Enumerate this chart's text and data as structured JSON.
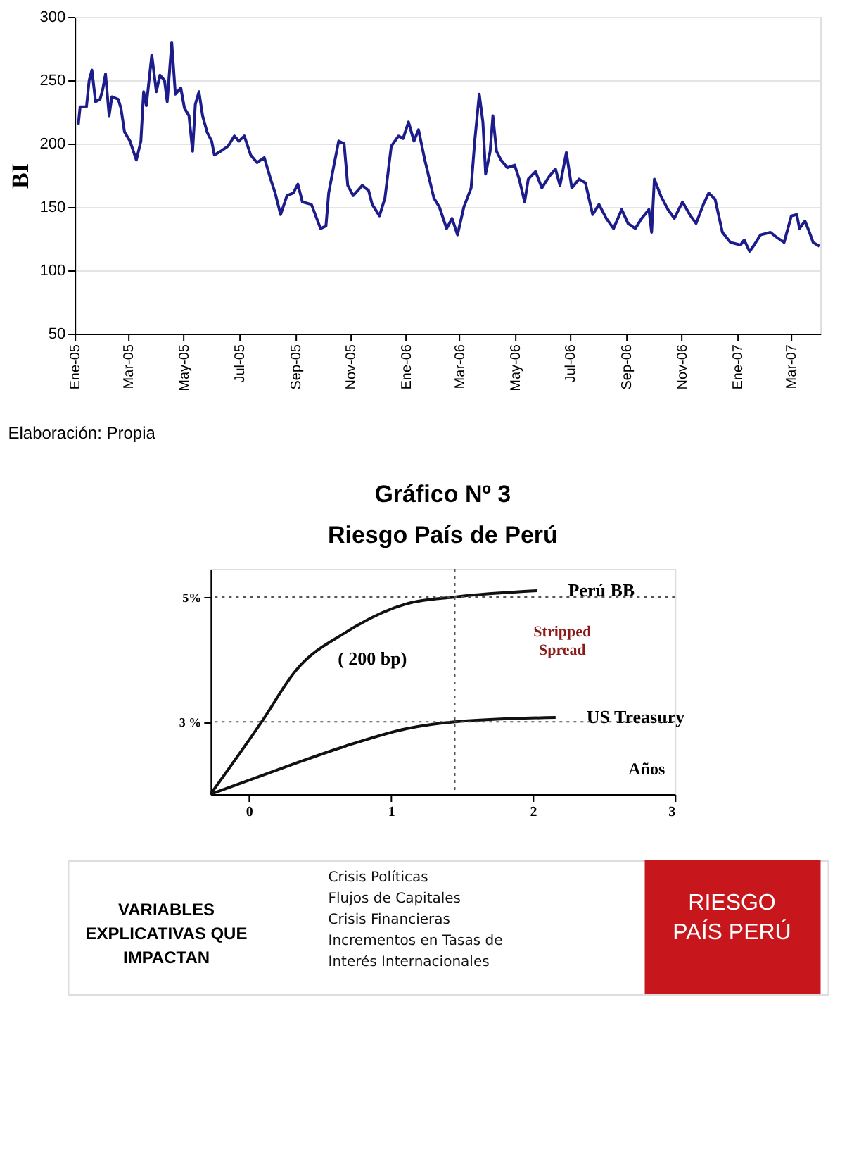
{
  "chart_data": [
    {
      "type": "line",
      "ylabel": "BI",
      "color": "#1c1c8a",
      "grid": "y",
      "xlim": [
        "2005-01-01",
        "2007-04-03"
      ],
      "ylim": [
        50,
        300
      ],
      "yticks": [
        50,
        100,
        150,
        200,
        250,
        300
      ],
      "xticks": [
        {
          "value": "2005-01-01",
          "label": "Ene-05"
        },
        {
          "value": "2005-03-01",
          "label": "Mar-05"
        },
        {
          "value": "2005-05-01",
          "label": "May-05"
        },
        {
          "value": "2005-07-01",
          "label": "Jul-05"
        },
        {
          "value": "2005-09-01",
          "label": "Sep-05"
        },
        {
          "value": "2005-11-01",
          "label": "Nov-05"
        },
        {
          "value": "2006-01-01",
          "label": "Ene-06"
        },
        {
          "value": "2006-03-01",
          "label": "Mar-06"
        },
        {
          "value": "2006-05-01",
          "label": "May-06"
        },
        {
          "value": "2006-07-01",
          "label": "Jul-06"
        },
        {
          "value": "2006-09-01",
          "label": "Sep-06"
        },
        {
          "value": "2006-11-01",
          "label": "Nov-06"
        },
        {
          "value": "2007-01-01",
          "label": "Ene-07"
        },
        {
          "value": "2007-03-01",
          "label": "Mar-07"
        }
      ],
      "x": [
        "2005-01-05",
        "2005-01-07",
        "2005-01-14",
        "2005-01-17",
        "2005-01-20",
        "2005-01-24",
        "2005-01-29",
        "2005-02-01",
        "2005-02-04",
        "2005-02-08",
        "2005-02-11",
        "2005-02-18",
        "2005-02-21",
        "2005-02-25",
        "2005-03-03",
        "2005-03-10",
        "2005-03-15",
        "2005-03-18",
        "2005-03-21",
        "2005-03-27",
        "2005-04-01",
        "2005-04-05",
        "2005-04-10",
        "2005-04-13",
        "2005-04-18",
        "2005-04-22",
        "2005-04-28",
        "2005-05-02",
        "2005-05-07",
        "2005-05-11",
        "2005-05-14",
        "2005-05-18",
        "2005-05-22",
        "2005-05-27",
        "2005-06-01",
        "2005-06-04",
        "2005-06-11",
        "2005-06-19",
        "2005-06-26",
        "2005-07-01",
        "2005-07-07",
        "2005-07-14",
        "2005-07-21",
        "2005-07-29",
        "2005-08-05",
        "2005-08-10",
        "2005-08-16",
        "2005-08-23",
        "2005-08-30",
        "2005-09-04",
        "2005-09-09",
        "2005-09-19",
        "2005-09-29",
        "2005-10-05",
        "2005-10-08",
        "2005-10-13",
        "2005-10-19",
        "2005-10-25",
        "2005-10-29",
        "2005-11-04",
        "2005-11-14",
        "2005-11-21",
        "2005-11-25",
        "2005-12-03",
        "2005-12-09",
        "2005-12-16",
        "2005-12-24",
        "2005-12-29",
        "2006-01-04",
        "2006-01-10",
        "2006-01-15",
        "2006-01-22",
        "2006-02-01",
        "2006-02-07",
        "2006-02-15",
        "2006-02-21",
        "2006-02-27",
        "2006-03-06",
        "2006-03-14",
        "2006-03-18",
        "2006-03-23",
        "2006-03-27",
        "2006-03-30",
        "2006-04-04",
        "2006-04-07",
        "2006-04-11",
        "2006-04-16",
        "2006-04-23",
        "2006-05-01",
        "2006-05-06",
        "2006-05-12",
        "2006-05-16",
        "2006-05-24",
        "2006-05-31",
        "2006-06-08",
        "2006-06-15",
        "2006-06-20",
        "2006-06-27",
        "2006-07-03",
        "2006-07-11",
        "2006-07-18",
        "2006-07-26",
        "2006-08-02",
        "2006-08-10",
        "2006-08-18",
        "2006-08-27",
        "2006-09-03",
        "2006-09-11",
        "2006-09-18",
        "2006-09-26",
        "2006-09-29",
        "2006-10-02",
        "2006-10-09",
        "2006-10-17",
        "2006-10-24",
        "2006-11-02",
        "2006-11-10",
        "2006-11-17",
        "2006-11-25",
        "2006-12-01",
        "2006-12-08",
        "2006-12-16",
        "2006-12-25",
        "2007-01-05",
        "2007-01-09",
        "2007-01-15",
        "2007-01-20",
        "2007-01-27",
        "2007-02-07",
        "2007-02-14",
        "2007-02-22",
        "2007-03-02",
        "2007-03-08",
        "2007-03-11",
        "2007-03-17",
        "2007-03-22",
        "2007-03-26",
        "2007-04-02"
      ],
      "values": [
        215,
        229,
        229,
        250,
        258,
        233,
        235,
        243,
        255,
        222,
        237,
        235,
        228,
        209,
        202,
        187,
        202,
        241,
        230,
        270,
        241,
        254,
        250,
        233,
        280,
        239,
        244,
        228,
        222,
        194,
        231,
        241,
        222,
        209,
        202,
        191,
        194,
        198,
        206,
        202,
        206,
        191,
        185,
        189,
        172,
        161,
        144,
        159,
        161,
        168,
        154,
        152,
        133,
        135,
        161,
        180,
        202,
        200,
        167,
        159,
        167,
        163,
        152,
        143,
        157,
        198,
        206,
        204,
        217,
        202,
        211,
        187,
        157,
        150,
        133,
        141,
        128,
        150,
        165,
        202,
        239,
        217,
        176,
        194,
        222,
        194,
        187,
        181,
        183,
        172,
        154,
        172,
        178,
        165,
        174,
        180,
        167,
        193,
        165,
        172,
        169,
        144,
        152,
        141,
        133,
        148,
        137,
        133,
        141,
        148,
        130,
        172,
        159,
        148,
        141,
        154,
        144,
        137,
        152,
        161,
        156,
        130,
        122,
        120,
        124,
        115,
        120,
        128,
        130,
        126,
        122,
        143,
        144,
        133,
        139,
        130,
        122,
        119
      ],
      "annotations": [
        "Elaboración: Propia"
      ]
    },
    {
      "type": "line",
      "title": "Gráfico Nº 3",
      "subtitle": "Riesgo País de Perú",
      "xlabel": "Años",
      "xlim": [
        -0.27,
        3
      ],
      "xticks": [
        0,
        1,
        2,
        3
      ],
      "ylim": [
        1.84,
        5.45
      ],
      "yticks": [
        {
          "value": 3,
          "label": "3 %"
        },
        {
          "value": 5,
          "label": "5%"
        }
      ],
      "series": [
        {
          "name": "Perú BB",
          "color": "#111111",
          "x": [
            -0.27,
            0.09,
            0.33,
            0.68,
            1.11,
            1.45,
            2.03
          ],
          "values": [
            1.84,
            3.0,
            3.82,
            4.43,
            4.89,
            5.0,
            5.1
          ]
        },
        {
          "name": "US Treasury",
          "color": "#111111",
          "x": [
            -0.27,
            0.25,
            0.68,
            1.11,
            1.45,
            2.16
          ],
          "values": [
            1.84,
            2.27,
            2.61,
            2.89,
            3.0,
            3.07
          ]
        }
      ],
      "ref_lines": [
        {
          "axis": "y",
          "value": 5,
          "line_style": "dotted"
        },
        {
          "axis": "y",
          "value": 3,
          "line_style": "dotted"
        },
        {
          "axis": "x",
          "value": 1.45,
          "line_style": "dotted"
        }
      ],
      "annotations": [
        "( 200 bp)",
        "Stripped\nSpread"
      ]
    },
    {
      "type": "other",
      "color": "#c8161d",
      "annotations": [
        "VARIABLES\nEXPLICATIVAS QUE\nIMPACTAN",
        "Crisis Políticas\nFlujos de Capitales\nCrisis Financieras\nIncrementos en Tasas de\nInterés Internacionales",
        "RIESGO\nPAÍS PERÚ"
      ]
    }
  ]
}
